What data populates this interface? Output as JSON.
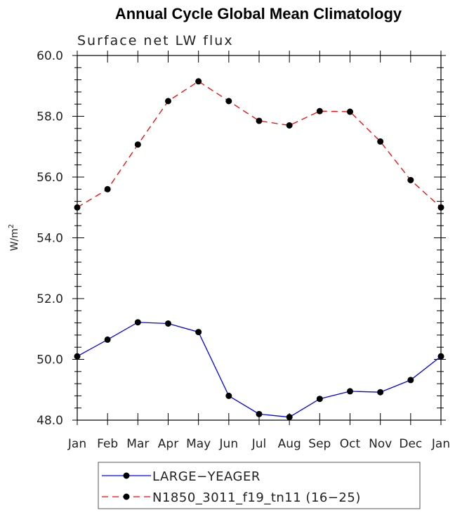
{
  "chart_data": {
    "type": "line",
    "title": "Annual Cycle Global Mean Climatology",
    "subtitle": "Surface net LW flux",
    "xlabel": "",
    "ylabel": "W/m",
    "ylabel_superscript": "2",
    "categories": [
      "Jan",
      "Feb",
      "Mar",
      "Apr",
      "May",
      "Jun",
      "Jul",
      "Aug",
      "Sep",
      "Oct",
      "Nov",
      "Dec",
      "Jan"
    ],
    "ylim": [
      48.0,
      60.0
    ],
    "yticks": [
      "48.0",
      "50.0",
      "52.0",
      "54.0",
      "56.0",
      "58.0",
      "60.0"
    ],
    "series": [
      {
        "name": "LARGE−YEAGER",
        "color": "#0000ff",
        "dash": "solid",
        "values": [
          50.1,
          50.65,
          51.22,
          51.18,
          50.9,
          48.8,
          48.2,
          48.1,
          48.7,
          48.95,
          48.92,
          49.32,
          50.1
        ]
      },
      {
        "name": "N1850_3011_f19_tn11 (16−25)",
        "color": "#ff0000",
        "dash": "dashed",
        "values": [
          55.0,
          55.6,
          57.07,
          58.5,
          59.15,
          58.5,
          57.85,
          57.7,
          58.17,
          58.15,
          57.17,
          55.9,
          55.0
        ]
      }
    ],
    "legend_position": "bottom",
    "grid": false
  }
}
